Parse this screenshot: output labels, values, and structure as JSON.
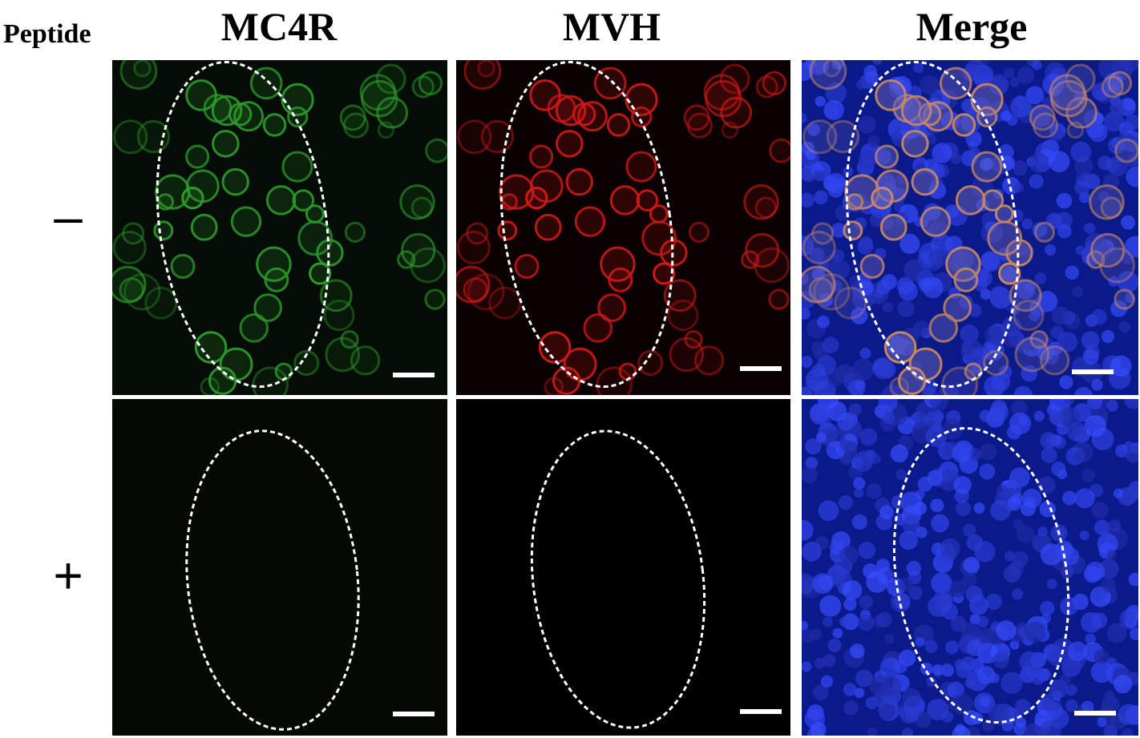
{
  "header": {
    "row_title": "Peptide",
    "columns": [
      "MC4R",
      "MVH",
      "Merge"
    ]
  },
  "rows": [
    "–",
    "+"
  ],
  "colors": {
    "mc4r_green": "#2c9a2c",
    "mvh_red": "#d01818",
    "merge_blue": "#1a2fd8",
    "merge_orange": "#c98860",
    "outline": "#ffffff"
  }
}
